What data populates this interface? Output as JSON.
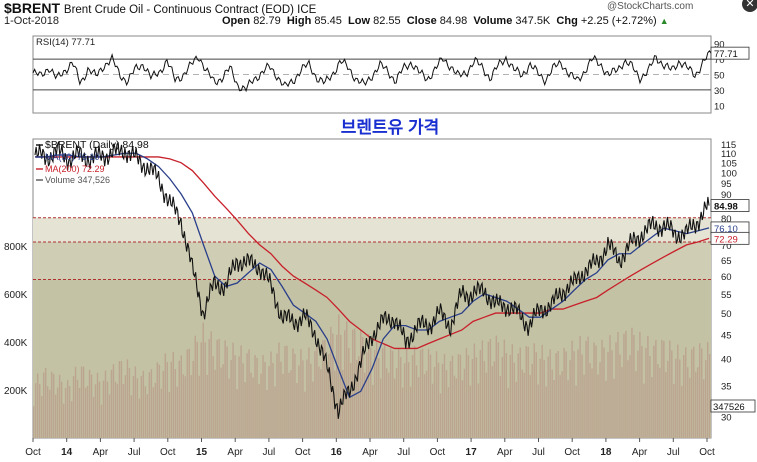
{
  "header": {
    "symbol": "$BRENT",
    "description": "Brent Crude Oil - Continuous Contract (EOD) ICE",
    "date": "1-Oct-2018",
    "open_label": "Open",
    "open": "82.79",
    "high_label": "High",
    "high": "85.45",
    "low_label": "Low",
    "low": "82.55",
    "close_label": "Close",
    "close": "84.98",
    "volume_label": "Volume",
    "volume": "347.5K",
    "chg_label": "Chg",
    "chg": "+2.25 (+2.72%)",
    "watermark": "@StockCharts.com",
    "close_icon": "close-icon"
  },
  "overlay_title": "브렌트유 가격",
  "colors": {
    "price": "#111111",
    "ma50": "#2a3f8a",
    "ma200": "#c8202a",
    "volume": "#b89a8a",
    "band": "#b8b89a",
    "band_dark": "#8a8a5a",
    "rsi": "#111111"
  },
  "chart_data": [
    {
      "type": "line",
      "title": "RSI(14) 77.71",
      "label": "RSI(14)",
      "last_value": "77.71",
      "ylim": [
        0,
        100
      ],
      "yticks": [
        "90",
        "70",
        "50",
        "30",
        "10"
      ],
      "reference_lines": [
        70,
        30
      ],
      "values": [
        52,
        48,
        60,
        44,
        55,
        66,
        38,
        58,
        47,
        62,
        70,
        50,
        41,
        57,
        64,
        45,
        53,
        68,
        43,
        49,
        61,
        75,
        54,
        40,
        46,
        58,
        36,
        30,
        44,
        52,
        60,
        48,
        33,
        42,
        56,
        63,
        46,
        38,
        51,
        67,
        59,
        44,
        36,
        49,
        62,
        55,
        41,
        58,
        66,
        52,
        44,
        57,
        70,
        61,
        47,
        53,
        68,
        59,
        45,
        61,
        72,
        56,
        49,
        63,
        52,
        43,
        58,
        66,
        50,
        42,
        55,
        70,
        64,
        48,
        56,
        67,
        60,
        46,
        53,
        74,
        62,
        55,
        68,
        58,
        49,
        66,
        77.71
      ]
    },
    {
      "type": "line",
      "title": "$BRENT (Daily) 84.98",
      "ylabel": "",
      "ylim": [
        27,
        118
      ],
      "log_scale": true,
      "yticks": [
        "115",
        "110",
        "105",
        "100",
        "95",
        "90",
        "85",
        "80",
        "75",
        "70",
        "65",
        "60",
        "55",
        "50",
        "45",
        "40",
        "35",
        "30"
      ],
      "xticks": [
        "Oct",
        "14",
        "Apr",
        "Jul",
        "Oct",
        "15",
        "Apr",
        "Jul",
        "Oct",
        "16",
        "Apr",
        "Jul",
        "Oct",
        "17",
        "Apr",
        "Jul",
        "Oct",
        "18",
        "Apr",
        "Jul",
        "Oct"
      ],
      "x": [
        "2013-10",
        "2013-11",
        "2013-12",
        "2014-01",
        "2014-02",
        "2014-03",
        "2014-04",
        "2014-05",
        "2014-06",
        "2014-07",
        "2014-08",
        "2014-09",
        "2014-10",
        "2014-11",
        "2014-12",
        "2015-01",
        "2015-02",
        "2015-03",
        "2015-04",
        "2015-05",
        "2015-06",
        "2015-07",
        "2015-08",
        "2015-09",
        "2015-10",
        "2015-11",
        "2015-12",
        "2016-01",
        "2016-02",
        "2016-03",
        "2016-04",
        "2016-05",
        "2016-06",
        "2016-07",
        "2016-08",
        "2016-09",
        "2016-10",
        "2016-11",
        "2016-12",
        "2017-01",
        "2017-02",
        "2017-03",
        "2017-04",
        "2017-05",
        "2017-06",
        "2017-07",
        "2017-08",
        "2017-09",
        "2017-10",
        "2017-11",
        "2017-12",
        "2018-01",
        "2018-02",
        "2018-03",
        "2018-04",
        "2018-05",
        "2018-06",
        "2018-07",
        "2018-08",
        "2018-09",
        "2018-10"
      ],
      "series": [
        {
          "name": "$BRENT (Daily) 84.98",
          "values": [
            109,
            108,
            111,
            107,
            109,
            107,
            109,
            110,
            112,
            107,
            103,
            97,
            86,
            79,
            62,
            50,
            58,
            57,
            65,
            64,
            63,
            57,
            49,
            48,
            49,
            45,
            38,
            31,
            34,
            39,
            45,
            48,
            49,
            43,
            47,
            47,
            50,
            47,
            55,
            55,
            56,
            52,
            52,
            50,
            47,
            51,
            52,
            56,
            58,
            62,
            64,
            70,
            65,
            70,
            74,
            77,
            77,
            74,
            74,
            79,
            84.98
          ]
        },
        {
          "name": "MA(50) 76.10",
          "values": [
            108,
            108,
            109,
            109,
            108,
            108,
            108,
            109,
            110,
            110,
            107,
            103,
            97,
            90,
            82,
            70,
            60,
            57,
            58,
            61,
            64,
            62,
            57,
            52,
            50,
            48,
            44,
            38,
            33,
            34,
            38,
            44,
            47,
            47,
            46,
            46,
            48,
            49,
            50,
            53,
            55,
            54,
            53,
            51,
            49,
            49,
            51,
            53,
            56,
            59,
            61,
            65,
            67,
            67,
            70,
            73,
            76,
            75,
            74,
            75,
            76.1
          ]
        },
        {
          "name": "MA(200) 72.29",
          "values": [
            108,
            108,
            108,
            108,
            108,
            108,
            108,
            108,
            108,
            108,
            108,
            108,
            107,
            105,
            101,
            95,
            89,
            84,
            79,
            74,
            70,
            67,
            63,
            60,
            58,
            56,
            54,
            51,
            48,
            46,
            44,
            43,
            42,
            42,
            42,
            43,
            44,
            45,
            46,
            48,
            49,
            50,
            50,
            50,
            50,
            50,
            51,
            51,
            52,
            53,
            54,
            56,
            58,
            60,
            62,
            64,
            66,
            68,
            70,
            71,
            72.29
          ]
        }
      ]
    },
    {
      "type": "bar",
      "title": "Volume 347,526",
      "label": "Volume",
      "last_value": "347,526",
      "last_value_tag": "347526",
      "yticks": [
        "800K",
        "600K",
        "400K",
        "200K"
      ],
      "ylim": [
        0,
        1000000
      ],
      "values": [
        220000,
        260000,
        240000,
        210000,
        280000,
        250000,
        230000,
        270000,
        300000,
        260000,
        240000,
        280000,
        320000,
        300000,
        350000,
        420000,
        380000,
        360000,
        340000,
        330000,
        300000,
        310000,
        360000,
        330000,
        320000,
        340000,
        380000,
        450000,
        420000,
        400000,
        370000,
        350000,
        330000,
        320000,
        340000,
        330000,
        310000,
        300000,
        320000,
        340000,
        360000,
        380000,
        350000,
        330000,
        350000,
        340000,
        320000,
        330000,
        360000,
        380000,
        350000,
        370000,
        390000,
        410000,
        380000,
        360000,
        370000,
        340000,
        330000,
        350000,
        347526
      ]
    }
  ]
}
